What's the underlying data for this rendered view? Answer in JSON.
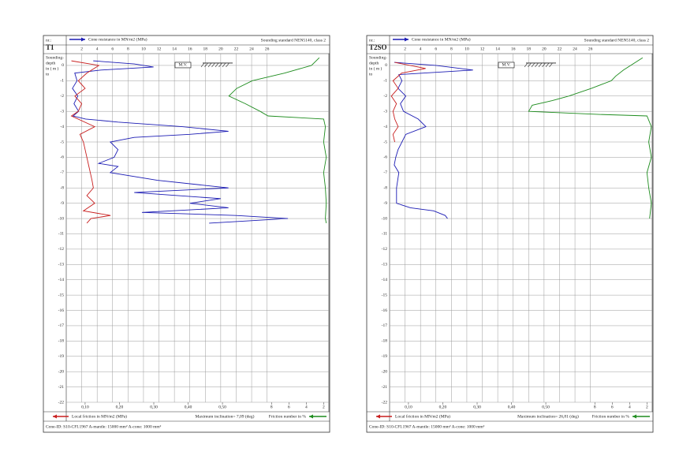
{
  "chart_data": [
    {
      "type": "line",
      "label": "nr.:",
      "title": "T1",
      "standard": "Sounding standard NEN5140, class 2",
      "y_label": [
        "Sounding-",
        "depth",
        "in ( m )",
        "to"
      ],
      "marker_label": "M.V.",
      "inclination": "Maximum inclination= 7,09 (deg)",
      "cone_id": "Cone-ID: S10-CFI.1967   A-mantle: 15000 mm²   A-cone: 1000 mm²",
      "xlim": [
        0,
        34
      ],
      "xticks": [
        2,
        4,
        6,
        8,
        10,
        12,
        14,
        16,
        18,
        20,
        22,
        24,
        26
      ],
      "x2lim": [
        0.045,
        0.81
      ],
      "x2ticks": [
        {
          "value": 0.1,
          "label": "0,10"
        },
        {
          "value": 0.2,
          "label": "0,20"
        },
        {
          "value": 0.3,
          "label": "0,30"
        },
        {
          "value": 0.4,
          "label": "0,40"
        },
        {
          "value": 0.5,
          "label": "0,50"
        }
      ],
      "x3lim": [
        31.6,
        1.4
      ],
      "x3ticks": [
        8,
        6,
        4,
        2
      ],
      "ylim": [
        0.77,
        -22
      ],
      "yticks": [
        0,
        -1,
        -2,
        -3,
        -4,
        -5,
        -6,
        -7,
        -8,
        -9,
        -10,
        -11,
        -12,
        -13,
        -14,
        -15,
        -16,
        -17,
        -18,
        -19,
        -20,
        -21,
        -22
      ],
      "grid": true,
      "series": [
        {
          "name": "Cone resistance in MN/m2 (MPa)",
          "color": "#1c1cb4",
          "axis": "x",
          "y": [
            0.3,
            0.1,
            -0.1,
            -0.3,
            -0.5,
            -1,
            -1.5,
            -2,
            -2.5,
            -3,
            -3.3,
            -3.5,
            -3.7,
            -4,
            -4.3,
            -4.5,
            -4.7,
            -5,
            -5.5,
            -6,
            -6.4,
            -6.6,
            -7,
            -7.5,
            -8,
            -8.3,
            -8.7,
            -9,
            -9.3,
            -9.6,
            -9.8,
            -10,
            -10.3
          ],
          "values": [
            3.5,
            8.8,
            11.3,
            4.5,
            1.1,
            1.4,
            0.8,
            1.5,
            1.0,
            1.6,
            0.9,
            2.5,
            6.7,
            15,
            21,
            16,
            8.8,
            5.7,
            6.7,
            6.2,
            4.2,
            6.7,
            5.7,
            11.8,
            21,
            8.8,
            20,
            16,
            21,
            9.8,
            22,
            28.7,
            18.5
          ]
        },
        {
          "name": "Local friction in MN/m2 (MPa)",
          "color": "#c81e1e",
          "axis": "x2",
          "y": [
            0.3,
            0,
            -0.5,
            -1,
            -1.5,
            -2,
            -2.5,
            -3,
            -3.3,
            -4,
            -4.5,
            -5,
            -5.5,
            -6,
            -6.5,
            -7,
            -7.5,
            -8,
            -8.5,
            -9,
            -9.5,
            -9.8,
            -10,
            -10.3
          ],
          "values": [
            0.06,
            0.14,
            0.105,
            0.08,
            0.1,
            0.07,
            0.09,
            0.08,
            0.06,
            0.128,
            0.085,
            0.095,
            0.1,
            0.105,
            0.11,
            0.115,
            0.12,
            0.124,
            0.105,
            0.128,
            0.095,
            0.174,
            0.117,
            0.105
          ]
        },
        {
          "name": "Friction number in %",
          "color": "#1e8c1e",
          "axis": "x3",
          "y": [
            0.5,
            0,
            -0.5,
            -1,
            -1.5,
            -2,
            -2.5,
            -3,
            -3.3,
            -3.5,
            -4,
            -5,
            -6,
            -7,
            -8,
            -9,
            -10,
            -10.3
          ],
          "values": [
            2.5,
            3.4,
            6.5,
            10.2,
            12,
            12.9,
            11,
            9.3,
            8.4,
            2,
            1.8,
            2,
            1.7,
            2,
            1.8,
            1.7,
            1.8,
            1.7
          ]
        }
      ]
    },
    {
      "type": "line",
      "label": "nr.:",
      "title": "T2SO",
      "standard": "Sounding standard NEN5140, class 2",
      "y_label": [
        "Sounding-",
        "depth",
        "in ( m )",
        "to"
      ],
      "marker_label": "M.V.",
      "inclination": "Maximum inclination= 26,81 (deg)",
      "cone_id": "Cone-ID: S10-CFI.1967   A-mantle: 15000 mm²   A-cone: 1000 mm²",
      "xlim": [
        0,
        34
      ],
      "xticks": [
        2,
        4,
        6,
        8,
        10,
        12,
        14,
        16,
        18,
        20,
        22,
        24,
        26
      ],
      "x2lim": [
        0.045,
        0.81
      ],
      "x2ticks": [
        {
          "value": 0.1,
          "label": "0,10"
        },
        {
          "value": 0.2,
          "label": "0,20"
        },
        {
          "value": 0.3,
          "label": "0,30"
        },
        {
          "value": 0.4,
          "label": "0,40"
        },
        {
          "value": 0.5,
          "label": "0,50"
        }
      ],
      "x3lim": [
        31.6,
        1.4
      ],
      "x3ticks": [
        8,
        6,
        4,
        2
      ],
      "ylim": [
        0.77,
        -22
      ],
      "yticks": [
        0,
        -1,
        -2,
        -3,
        -4,
        -5,
        -6,
        -7,
        -8,
        -9,
        -10,
        -11,
        -12,
        -13,
        -14,
        -15,
        -16,
        -17,
        -18,
        -19,
        -20,
        -21,
        -22
      ],
      "grid": true,
      "series": [
        {
          "name": "Cone resistance in MN/m2 (MPa)",
          "color": "#1c1cb4",
          "axis": "x",
          "y": [
            0.2,
            0,
            -0.3,
            -0.6,
            -1,
            -1.5,
            -2,
            -2.5,
            -3,
            -3.5,
            -4,
            -4.5,
            -5,
            -5.5,
            -6,
            -6.5,
            -7,
            -8,
            -9,
            -9.3,
            -9.5,
            -9.8,
            -10
          ],
          "values": [
            0.6,
            6,
            10.8,
            1.2,
            1.6,
            1.1,
            2.1,
            1.4,
            1.8,
            3.7,
            4.7,
            2.1,
            1.6,
            1.1,
            0.8,
            0.6,
            1.2,
            0.9,
            0.9,
            2.7,
            5.7,
            7.2,
            7.5
          ]
        },
        {
          "name": "Local friction in MN/m2 (MPa)",
          "color": "#c81e1e",
          "axis": "x2",
          "y": [
            0.2,
            -0.2,
            -0.5,
            -1,
            -1.5,
            -2,
            -2.5,
            -3,
            -3.5,
            -4,
            -4.5,
            -5
          ],
          "values": [
            0.06,
            0.15,
            0.08,
            0.055,
            0.07,
            0.05,
            0.065,
            0.055,
            0.06,
            0.07,
            0.055,
            0.06
          ]
        },
        {
          "name": "Friction number in %",
          "color": "#1e8c1e",
          "axis": "x3",
          "y": [
            0.5,
            -0.3,
            -0.7,
            -1,
            -1.5,
            -2,
            -2.3,
            -2.6,
            -3,
            -3.2,
            -3.3,
            -4,
            -5,
            -6,
            -7,
            -8,
            -9,
            -10
          ],
          "values": [
            2.5,
            4.7,
            5.6,
            6.1,
            8.4,
            11,
            12.9,
            15.2,
            15.6,
            7.5,
            2,
            1.5,
            1.8,
            1.5,
            2,
            1.8,
            1.5,
            1.7
          ]
        }
      ]
    }
  ]
}
